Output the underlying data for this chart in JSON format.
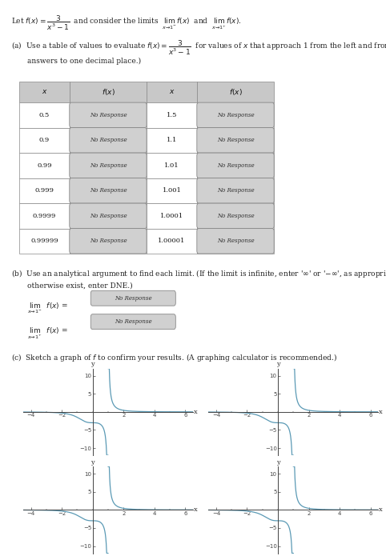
{
  "title_text": "Let f(x) = 3/(x³ - 1) and consider the limits lim f(x) and lim f(x).",
  "title_sub": "x→1⁻                x→1⁺",
  "part_a_text": "(a)  Use a table of values to evaluate f(x) = 3/(x³ - 1) for values of x that approach 1 from the left and from the right. (Round your\n       answers to one decimal place.)",
  "table_x_left": [
    "0.5",
    "0.9",
    "0.99",
    "0.999",
    "0.9999",
    "0.99999"
  ],
  "table_x_right": [
    "1.5",
    "1.1",
    "1.01",
    "1.001",
    "1.0001",
    "1.00001"
  ],
  "no_response_text": "No Response",
  "part_b_text": "(b)  Use an analytical argument to find each limit. (If the limit is infinite, enter '∞' or '-∞', as appropriate. If the limit does not\n       otherwise exist, enter DNE.)",
  "lim_left_label": "lim  f(x) =",
  "lim_left_sub": "x→1⁻",
  "lim_right_label": "lim  f(x) =",
  "lim_right_sub": "x→1⁺",
  "part_c_text": "(c)  Sketch a graph of f to confirm your results. (A graphing calculator is recommended.)",
  "graph_xlim": [
    -4.5,
    6.5
  ],
  "graph_ylim": [
    -12,
    12
  ],
  "graph_xticks": [
    -4,
    -2,
    2,
    4,
    6
  ],
  "graph_yticks": [
    -10,
    -5,
    5,
    10
  ],
  "curve_color": "#5b9ab5",
  "bg_color": "#ffffff",
  "text_color": "#222222",
  "table_header_bg": "#c8c8c8",
  "table_cell_bg": "#f0f0f0",
  "no_response_bg": "#d0d0d0",
  "no_response_border": "#999999"
}
